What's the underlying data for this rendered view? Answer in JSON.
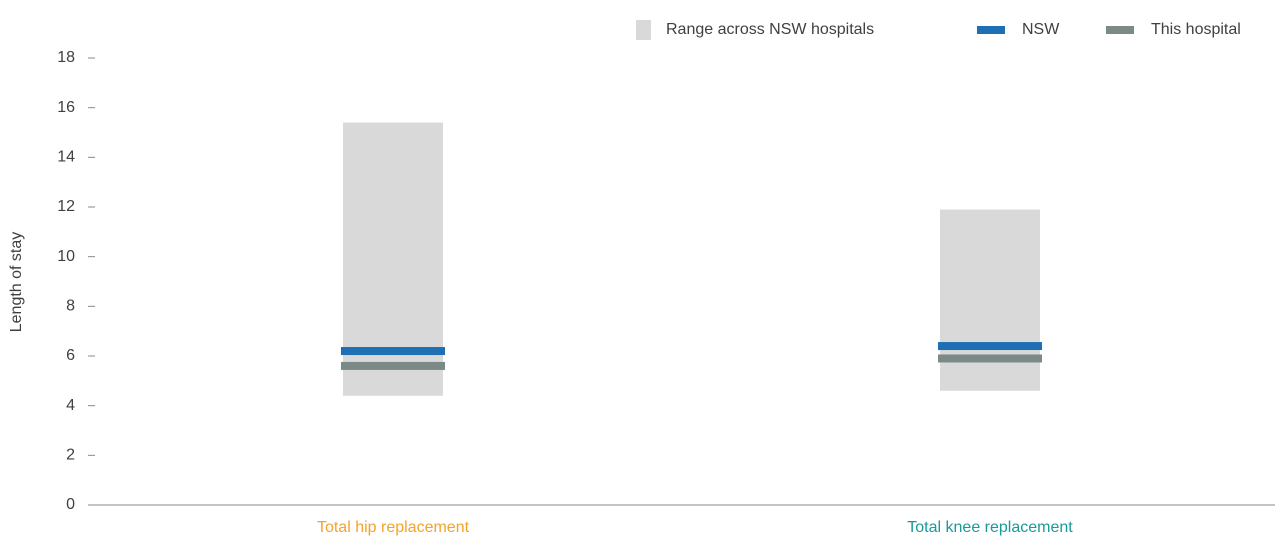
{
  "chart_data": {
    "type": "range",
    "y_label": "Length of stay",
    "categories": [
      "Total hip replacement",
      "Total knee replacement"
    ],
    "category_colors": [
      "#f5a32b",
      "#1a9a9a"
    ],
    "series": [
      {
        "name": "Range across NSW hospitals",
        "color": "#d9d9d9",
        "low": [
          4.4,
          4.6
        ],
        "high": [
          15.4,
          11.9
        ]
      },
      {
        "name": "NSW",
        "color": "#1f6fb5",
        "values": [
          6.2,
          6.4
        ]
      },
      {
        "name": "This hospital",
        "color": "#7b8a87",
        "values": [
          5.6,
          5.9
        ]
      }
    ],
    "ylim": [
      0,
      18
    ],
    "yticks": [
      0,
      2,
      4,
      6,
      8,
      10,
      12,
      14,
      16,
      18
    ],
    "grid": false,
    "legend": "top-right"
  }
}
